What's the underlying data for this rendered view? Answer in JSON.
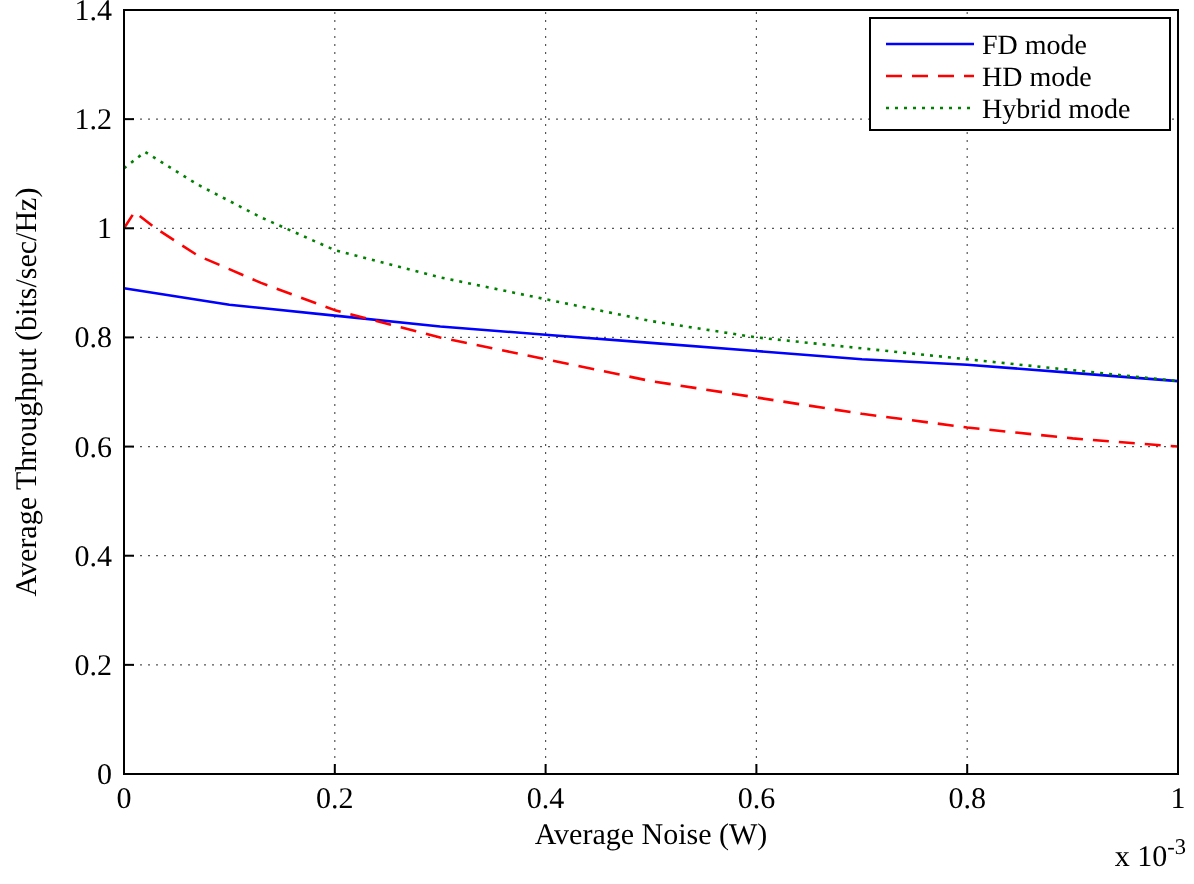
{
  "chart_data": {
    "type": "line",
    "xlabel": "Average Noise (W)",
    "ylabel": "Average Throughput (bits/sec/Hz)",
    "xlim": [
      0,
      1
    ],
    "xticks": [
      0,
      0.2,
      0.4,
      0.6,
      0.8,
      1
    ],
    "ylim": [
      0,
      1.4
    ],
    "yticks": [
      0,
      0.2,
      0.4,
      0.6,
      0.8,
      1,
      1.2,
      1.4
    ],
    "grid": true,
    "legend": "top right",
    "annotations": [
      "x 10$^{-3}$"
    ],
    "series": [
      {
        "name": "FD mode",
        "color": "#0000ff",
        "line_style": "solid",
        "x": [
          0,
          0.1,
          0.2,
          0.3,
          0.4,
          0.5,
          0.6,
          0.7,
          0.8,
          0.9,
          1
        ],
        "values": [
          0.89,
          0.86,
          0.84,
          0.82,
          0.805,
          0.79,
          0.775,
          0.76,
          0.75,
          0.735,
          0.72
        ]
      },
      {
        "name": "HD mode",
        "color": "#ff0000",
        "line_style": "dashed",
        "x": [
          0,
          0.01,
          0.03,
          0.07,
          0.13,
          0.2,
          0.3,
          0.4,
          0.5,
          0.6,
          0.7,
          0.8,
          0.9,
          1
        ],
        "values": [
          1.0,
          1.03,
          1.0,
          0.95,
          0.9,
          0.85,
          0.8,
          0.76,
          0.72,
          0.69,
          0.66,
          0.635,
          0.615,
          0.6
        ]
      },
      {
        "name": "Hybrid mode",
        "color": "#008000",
        "line_style": "dotted",
        "x": [
          0,
          0.02,
          0.07,
          0.13,
          0.2,
          0.3,
          0.4,
          0.5,
          0.6,
          0.7,
          0.8,
          0.9,
          1
        ],
        "values": [
          1.11,
          1.14,
          1.08,
          1.02,
          0.96,
          0.91,
          0.87,
          0.83,
          0.8,
          0.78,
          0.76,
          0.74,
          0.72
        ]
      }
    ]
  }
}
